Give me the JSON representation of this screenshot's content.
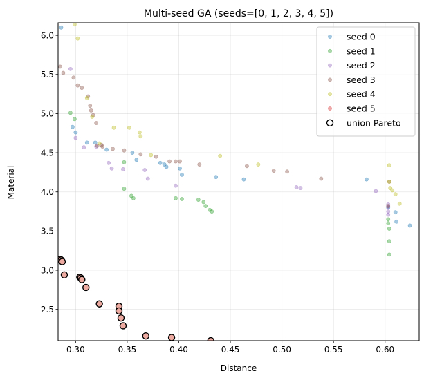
{
  "chart_data": {
    "type": "scatter",
    "title": "Multi-seed GA (seeds=[0, 1, 2, 3, 4, 5])",
    "xlabel": "Distance",
    "ylabel": "Material",
    "xlim": [
      0.283,
      0.633
    ],
    "ylim": [
      2.1,
      6.16
    ],
    "xticks": [
      "0.30",
      "0.35",
      "0.40",
      "0.45",
      "0.50",
      "0.55",
      "0.60"
    ],
    "yticks": [
      "2.5",
      "3.0",
      "3.5",
      "4.0",
      "4.5",
      "5.0",
      "5.5",
      "6.0"
    ],
    "grid": true,
    "legend_position": "top-right",
    "series": [
      {
        "name": "seed 0",
        "color": "#1f77b4",
        "points": [
          [
            0.286,
            6.1
          ],
          [
            0.297,
            4.83
          ],
          [
            0.3,
            4.76
          ],
          [
            0.311,
            4.63
          ],
          [
            0.319,
            4.63
          ],
          [
            0.33,
            4.54
          ],
          [
            0.355,
            4.5
          ],
          [
            0.359,
            4.41
          ],
          [
            0.382,
            4.37
          ],
          [
            0.386,
            4.35
          ],
          [
            0.388,
            4.32
          ],
          [
            0.401,
            4.3
          ],
          [
            0.403,
            4.22
          ],
          [
            0.436,
            4.19
          ],
          [
            0.463,
            4.16
          ],
          [
            0.582,
            4.16
          ],
          [
            0.603,
            3.8
          ],
          [
            0.61,
            3.74
          ],
          [
            0.611,
            3.62
          ],
          [
            0.624,
            3.57
          ]
        ]
      },
      {
        "name": "seed 1",
        "color": "#2ca02c",
        "points": [
          [
            0.295,
            5.01
          ],
          [
            0.299,
            4.93
          ],
          [
            0.347,
            4.38
          ],
          [
            0.347,
            4.04
          ],
          [
            0.354,
            3.95
          ],
          [
            0.356,
            3.92
          ],
          [
            0.397,
            3.92
          ],
          [
            0.403,
            3.91
          ],
          [
            0.419,
            3.9
          ],
          [
            0.424,
            3.87
          ],
          [
            0.426,
            3.82
          ],
          [
            0.43,
            3.77
          ],
          [
            0.432,
            3.75
          ],
          [
            0.603,
            3.65
          ],
          [
            0.603,
            3.6
          ],
          [
            0.604,
            3.53
          ],
          [
            0.604,
            3.37
          ],
          [
            0.604,
            3.2
          ]
        ]
      },
      {
        "name": "seed 2",
        "color": "#9467bd",
        "points": [
          [
            0.295,
            5.57
          ],
          [
            0.3,
            4.69
          ],
          [
            0.308,
            4.57
          ],
          [
            0.32,
            4.58
          ],
          [
            0.332,
            4.37
          ],
          [
            0.335,
            4.3
          ],
          [
            0.346,
            4.29
          ],
          [
            0.367,
            4.28
          ],
          [
            0.37,
            4.17
          ],
          [
            0.397,
            4.08
          ],
          [
            0.514,
            4.06
          ],
          [
            0.518,
            4.05
          ],
          [
            0.591,
            4.01
          ],
          [
            0.603,
            3.84
          ],
          [
            0.603,
            3.81
          ],
          [
            0.603,
            3.75
          ],
          [
            0.603,
            3.71
          ]
        ]
      },
      {
        "name": "seed 3",
        "color": "#8c564b",
        "points": [
          [
            0.285,
            5.6
          ],
          [
            0.288,
            5.52
          ],
          [
            0.298,
            5.46
          ],
          [
            0.302,
            5.36
          ],
          [
            0.306,
            5.33
          ],
          [
            0.312,
            5.22
          ],
          [
            0.314,
            5.1
          ],
          [
            0.315,
            5.04
          ],
          [
            0.317,
            4.98
          ],
          [
            0.32,
            4.88
          ],
          [
            0.321,
            4.59
          ],
          [
            0.325,
            4.6
          ],
          [
            0.326,
            4.58
          ],
          [
            0.336,
            4.55
          ],
          [
            0.347,
            4.53
          ],
          [
            0.363,
            4.48
          ],
          [
            0.378,
            4.45
          ],
          [
            0.391,
            4.39
          ],
          [
            0.397,
            4.39
          ],
          [
            0.401,
            4.39
          ],
          [
            0.42,
            4.35
          ],
          [
            0.466,
            4.33
          ],
          [
            0.492,
            4.27
          ],
          [
            0.505,
            4.26
          ],
          [
            0.538,
            4.17
          ],
          [
            0.604,
            4.13
          ],
          [
            0.603,
            3.82
          ]
        ]
      },
      {
        "name": "seed 4",
        "color": "#bcbd22",
        "points": [
          [
            0.299,
            6.14
          ],
          [
            0.302,
            5.96
          ],
          [
            0.311,
            5.2
          ],
          [
            0.316,
            4.96
          ],
          [
            0.323,
            4.62
          ],
          [
            0.337,
            4.82
          ],
          [
            0.352,
            4.82
          ],
          [
            0.362,
            4.76
          ],
          [
            0.363,
            4.71
          ],
          [
            0.373,
            4.47
          ],
          [
            0.44,
            4.46
          ],
          [
            0.477,
            4.35
          ],
          [
            0.604,
            4.34
          ],
          [
            0.604,
            4.13
          ],
          [
            0.605,
            4.05
          ],
          [
            0.607,
            4.02
          ],
          [
            0.61,
            3.97
          ],
          [
            0.614,
            3.85
          ]
        ]
      },
      {
        "name": "seed 5",
        "color": "#d62728",
        "points": []
      }
    ],
    "pareto": {
      "name": "union Pareto",
      "face_color": "#ecaaa0",
      "edge_color": "#000000",
      "points": [
        [
          0.285,
          3.14
        ],
        [
          0.286,
          3.13
        ],
        [
          0.287,
          3.11
        ],
        [
          0.289,
          2.94
        ],
        [
          0.304,
          2.91
        ],
        [
          0.305,
          2.9
        ],
        [
          0.306,
          2.88
        ],
        [
          0.31,
          2.78
        ],
        [
          0.323,
          2.57
        ],
        [
          0.342,
          2.54
        ],
        [
          0.342,
          2.48
        ],
        [
          0.344,
          2.39
        ],
        [
          0.346,
          2.29
        ],
        [
          0.368,
          2.16
        ],
        [
          0.393,
          2.14
        ],
        [
          0.431,
          2.1
        ]
      ]
    }
  }
}
